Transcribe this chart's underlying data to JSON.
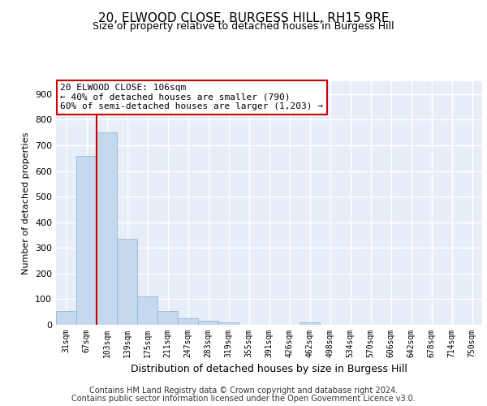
{
  "title": "20, ELWOOD CLOSE, BURGESS HILL, RH15 9RE",
  "subtitle": "Size of property relative to detached houses in Burgess Hill",
  "xlabel": "Distribution of detached houses by size in Burgess Hill",
  "ylabel": "Number of detached properties",
  "bar_color": "#c5d9ee",
  "bar_edge_color": "#8fb8d8",
  "marker_line_color": "#cc0000",
  "marker_bin_index": 2,
  "categories": [
    "31sqm",
    "67sqm",
    "103sqm",
    "139sqm",
    "175sqm",
    "211sqm",
    "247sqm",
    "283sqm",
    "319sqm",
    "355sqm",
    "391sqm",
    "426sqm",
    "462sqm",
    "498sqm",
    "534sqm",
    "570sqm",
    "606sqm",
    "642sqm",
    "678sqm",
    "714sqm",
    "750sqm"
  ],
  "values": [
    55,
    660,
    750,
    335,
    110,
    55,
    25,
    15,
    10,
    0,
    0,
    0,
    10,
    0,
    0,
    0,
    0,
    0,
    0,
    0,
    0
  ],
  "ylim": [
    0,
    950
  ],
  "yticks": [
    0,
    100,
    200,
    300,
    400,
    500,
    600,
    700,
    800,
    900
  ],
  "annotation_text": "20 ELWOOD CLOSE: 106sqm\n← 40% of detached houses are smaller (790)\n60% of semi-detached houses are larger (1,203) →",
  "footer1": "Contains HM Land Registry data © Crown copyright and database right 2024.",
  "footer2": "Contains public sector information licensed under the Open Government Licence v3.0.",
  "background_color": "#e8eef8",
  "grid_color": "#ffffff"
}
